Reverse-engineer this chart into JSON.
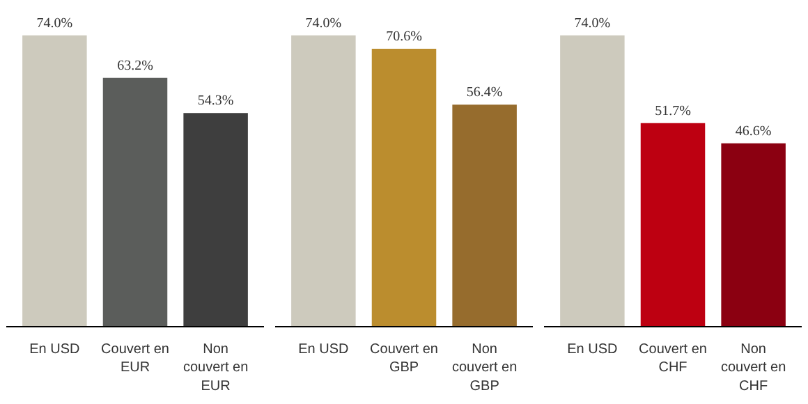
{
  "chart_data": [
    {
      "type": "bar",
      "categories": [
        "En USD",
        "Couvert en EUR",
        "Non couvert en EUR"
      ],
      "values": [
        74.0,
        63.2,
        54.3
      ],
      "colors": [
        "#cdcabd",
        "#5b5d5b",
        "#3e3e3e"
      ],
      "value_labels": [
        "74.0%",
        "63.2%",
        "54.3%"
      ],
      "grid": false,
      "tick_labels": "x"
    },
    {
      "type": "bar",
      "categories": [
        "En USD",
        "Couvert en GBP",
        "Non couvert en GBP"
      ],
      "values": [
        74.0,
        70.6,
        56.4
      ],
      "colors": [
        "#cdcabd",
        "#bb8d2e",
        "#966c2d"
      ],
      "value_labels": [
        "74.0%",
        "70.6%",
        "56.4%"
      ],
      "grid": false,
      "tick_labels": "x"
    },
    {
      "type": "bar",
      "categories": [
        "En USD",
        "Couvert en CHF",
        "Non couvert en CHF"
      ],
      "values": [
        74.0,
        51.7,
        46.6
      ],
      "colors": [
        "#cdcabd",
        "#bd0011",
        "#8b0011"
      ],
      "value_labels": [
        "74.0%",
        "51.7%",
        "46.6%"
      ],
      "grid": false,
      "tick_labels": "x"
    }
  ]
}
